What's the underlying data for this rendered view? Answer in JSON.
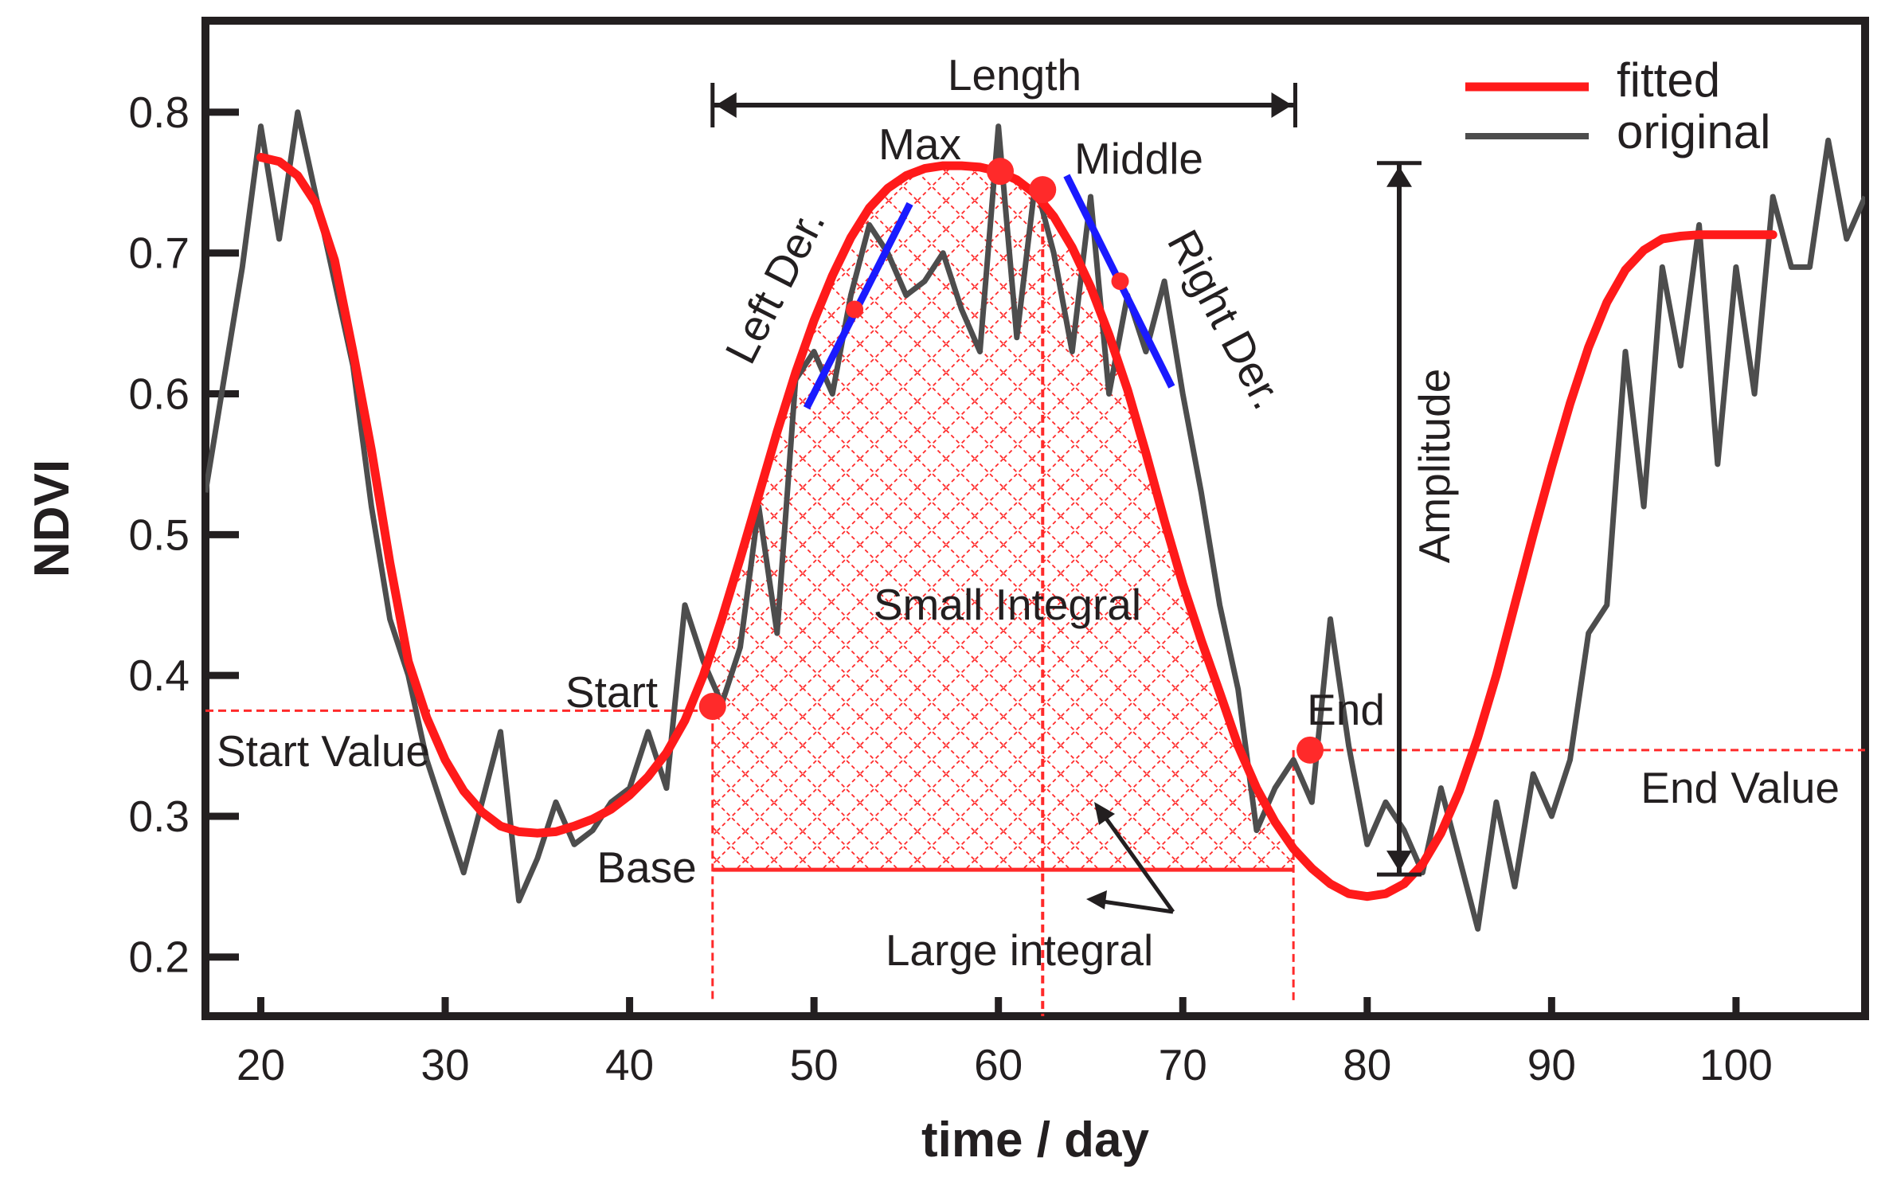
{
  "chart_data": {
    "type": "line",
    "title": "",
    "xlabel": "time / day",
    "ylabel": "NDVI",
    "xlim": [
      17,
      107
    ],
    "ylim": [
      0.158,
      0.865
    ],
    "xticks": [
      20,
      30,
      40,
      50,
      60,
      70,
      80,
      90,
      100
    ],
    "yticks": [
      0.2,
      0.3,
      0.4,
      0.5,
      0.6,
      0.7,
      0.8
    ],
    "grid": false,
    "legend": {
      "position": "top-right",
      "entries": [
        {
          "label": "fitted",
          "color": "#ff1a1a"
        },
        {
          "label": "original",
          "color": "#4d4d4d"
        }
      ]
    },
    "series": [
      {
        "name": "original",
        "color": "#4d4d4d",
        "x": [
          17,
          19,
          20,
          21,
          22,
          23,
          24,
          25,
          26,
          27,
          28,
          29,
          30,
          31,
          32,
          33,
          34,
          35,
          36,
          37,
          38,
          39,
          40,
          41,
          42,
          43,
          44,
          45,
          46,
          47,
          48,
          49,
          50,
          51,
          52,
          53,
          54,
          55,
          56,
          57,
          58,
          59,
          60,
          61,
          62,
          63,
          64,
          65,
          66,
          67,
          68,
          69,
          70,
          71,
          72,
          73,
          74,
          75,
          76,
          77,
          78,
          79,
          80,
          81,
          82,
          83,
          84,
          85,
          86,
          87,
          88,
          89,
          90,
          91,
          92,
          93,
          94,
          95,
          96,
          97,
          98,
          99,
          100,
          101,
          102,
          103,
          104,
          105,
          106,
          107
        ],
        "values": [
          0.53,
          0.69,
          0.79,
          0.71,
          0.8,
          0.74,
          0.68,
          0.62,
          0.52,
          0.44,
          0.4,
          0.34,
          0.3,
          0.26,
          0.31,
          0.36,
          0.24,
          0.27,
          0.31,
          0.28,
          0.29,
          0.31,
          0.32,
          0.36,
          0.32,
          0.45,
          0.41,
          0.38,
          0.42,
          0.52,
          0.43,
          0.61,
          0.63,
          0.6,
          0.67,
          0.72,
          0.7,
          0.67,
          0.68,
          0.7,
          0.66,
          0.63,
          0.79,
          0.64,
          0.75,
          0.7,
          0.63,
          0.74,
          0.6,
          0.67,
          0.63,
          0.68,
          0.6,
          0.53,
          0.45,
          0.39,
          0.29,
          0.32,
          0.34,
          0.31,
          0.44,
          0.35,
          0.28,
          0.31,
          0.29,
          0.26,
          0.32,
          0.27,
          0.22,
          0.31,
          0.25,
          0.33,
          0.3,
          0.34,
          0.43,
          0.45,
          0.63,
          0.52,
          0.69,
          0.62,
          0.72,
          0.55,
          0.69,
          0.6,
          0.74,
          0.69,
          0.69,
          0.78,
          0.71,
          0.74
        ]
      },
      {
        "name": "fitted",
        "color": "#ff1a1a",
        "x": [
          20,
          21,
          22,
          23,
          24,
          25,
          26,
          27,
          28,
          29,
          30,
          31,
          32,
          33,
          34,
          35,
          36,
          37,
          38,
          39,
          40,
          41,
          42,
          43,
          44,
          45,
          46,
          47,
          48,
          49,
          50,
          51,
          52,
          53,
          54,
          55,
          56,
          57,
          58,
          59,
          60,
          61,
          62,
          63,
          64,
          65,
          66,
          67,
          68,
          69,
          70,
          71,
          72,
          73,
          74,
          75,
          76,
          77,
          78,
          79,
          80,
          81,
          82,
          83,
          84,
          85,
          86,
          87,
          88,
          89,
          90,
          91,
          92,
          93,
          94,
          95,
          96,
          97,
          98,
          99,
          100,
          101,
          102
        ],
        "values": [
          0.768,
          0.765,
          0.755,
          0.735,
          0.695,
          0.63,
          0.56,
          0.48,
          0.41,
          0.37,
          0.34,
          0.318,
          0.303,
          0.293,
          0.289,
          0.288,
          0.289,
          0.293,
          0.298,
          0.305,
          0.315,
          0.328,
          0.345,
          0.368,
          0.4,
          0.44,
          0.483,
          0.528,
          0.573,
          0.615,
          0.652,
          0.684,
          0.711,
          0.732,
          0.746,
          0.755,
          0.76,
          0.762,
          0.762,
          0.761,
          0.758,
          0.752,
          0.742,
          0.726,
          0.704,
          0.676,
          0.642,
          0.603,
          0.558,
          0.51,
          0.465,
          0.425,
          0.388,
          0.35,
          0.32,
          0.296,
          0.277,
          0.263,
          0.252,
          0.245,
          0.243,
          0.245,
          0.252,
          0.266,
          0.288,
          0.318,
          0.356,
          0.4,
          0.45,
          0.5,
          0.548,
          0.593,
          0.633,
          0.665,
          0.688,
          0.702,
          0.71,
          0.712,
          0.713,
          0.713,
          0.713,
          0.713,
          0.713
        ]
      }
    ],
    "points": [
      {
        "name": "Start",
        "x": 44.5,
        "y": 0.378
      },
      {
        "name": "Left Der.",
        "x": 52.2,
        "y": 0.66
      },
      {
        "name": "Max",
        "x": 60.1,
        "y": 0.758
      },
      {
        "name": "Middle",
        "x": 62.4,
        "y": 0.745
      },
      {
        "name": "Right Der.",
        "x": 66.6,
        "y": 0.68
      },
      {
        "name": "End",
        "x": 76.9,
        "y": 0.347
      }
    ],
    "annotations": {
      "length": "Length",
      "max": "Max",
      "middle": "Middle",
      "left_der": "Left Der.",
      "right_der": "Right Der.",
      "amplitude": "Amplitude",
      "small_integral": "Small Integral",
      "large_integral": "Large integral",
      "start": "Start",
      "end": "End",
      "start_value": "Start Value",
      "end_value": "End Value",
      "base": "Base"
    },
    "reference_values": {
      "start_value": 0.375,
      "end_value": 0.347,
      "base": 0.262,
      "start_x": 44.5,
      "end_x": 76.0,
      "middle_x": 62.4,
      "amplitude_top": 0.765,
      "amplitude_bottom": 0.262
    }
  }
}
